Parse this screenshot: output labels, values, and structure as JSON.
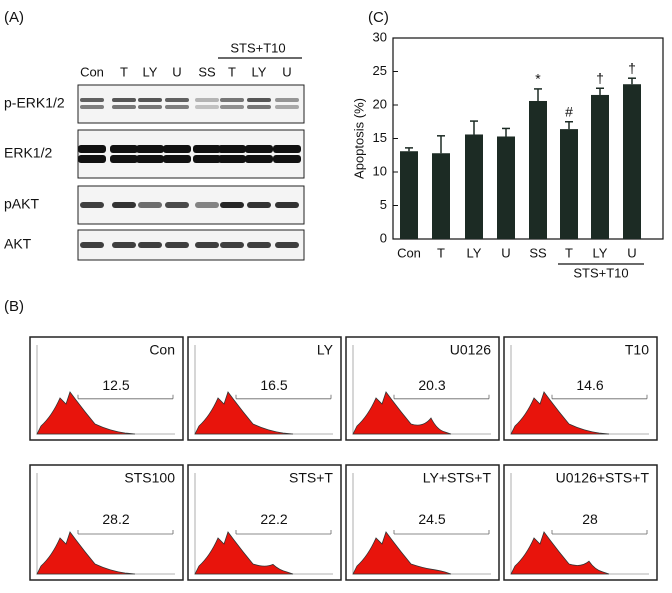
{
  "panel_a": {
    "label": "(A)",
    "lanes": [
      "Con",
      "T",
      "LY",
      "U",
      "SS",
      "T",
      "LY",
      "U"
    ],
    "group_label": "STS+T10",
    "blots": [
      "p-ERK1/2",
      "ERK1/2",
      "pAKT",
      "AKT"
    ]
  },
  "chart_data": {
    "type": "bar",
    "panel_label": "(C)",
    "y_label": "Apoptosis (%)",
    "categories": [
      "Con",
      "T",
      "LY",
      "U",
      "SS",
      "T",
      "LY",
      "U"
    ],
    "group_label": "STS+T10",
    "values": [
      13.1,
      12.8,
      15.6,
      15.3,
      20.6,
      16.4,
      21.5,
      23.1
    ],
    "errors": [
      0.5,
      2.6,
      2.0,
      1.2,
      1.8,
      1.1,
      1.0,
      0.9
    ],
    "annotations": [
      null,
      null,
      null,
      null,
      "*",
      "#",
      "†",
      "†"
    ],
    "color": "#1c2b24",
    "ylim": [
      0,
      30
    ],
    "yticks": [
      0,
      5,
      10,
      15,
      20,
      25,
      30
    ]
  },
  "panel_b": {
    "label": "(B)",
    "histograms": [
      {
        "name": "Con",
        "value": 12.5
      },
      {
        "name": "LY",
        "value": 16.5
      },
      {
        "name": "U0126",
        "value": 20.3
      },
      {
        "name": "T10",
        "value": 14.6
      },
      {
        "name": "STS100",
        "value": 28.2
      },
      {
        "name": "STS+T",
        "value": 22.2
      },
      {
        "name": "LY+STS+T",
        "value": 24.5
      },
      {
        "name": "U0126+STS+T",
        "value": 28
      }
    ]
  }
}
